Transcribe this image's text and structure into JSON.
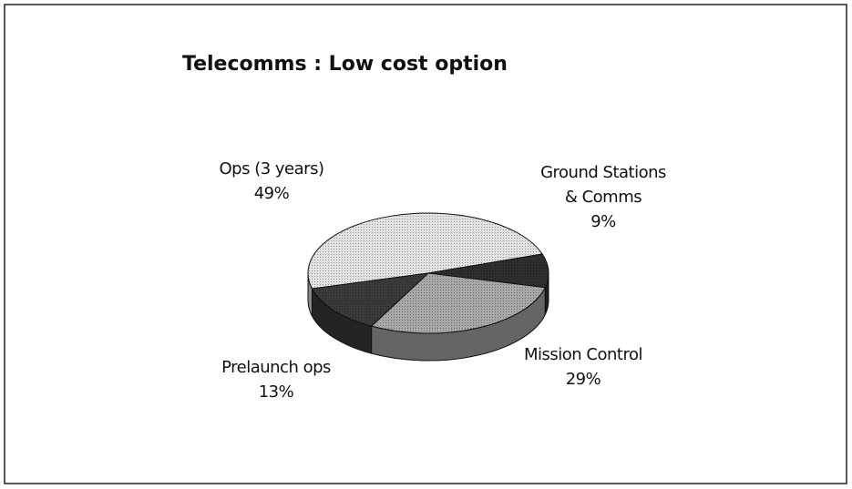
{
  "chart_data": {
    "type": "pie",
    "title": "Telecomms : Low cost option",
    "categories": [
      "Ops (3 years)",
      "Ground Stations & Comms",
      "Mission Control",
      "Prelaunch ops"
    ],
    "values": [
      49,
      9,
      29,
      13
    ],
    "value_labels": [
      "49%",
      "9%",
      "29%",
      "13%"
    ],
    "colors": [
      "#e2e2e2",
      "#2e2e2e",
      "#a8a8a8",
      "#3a3a3a"
    ]
  }
}
